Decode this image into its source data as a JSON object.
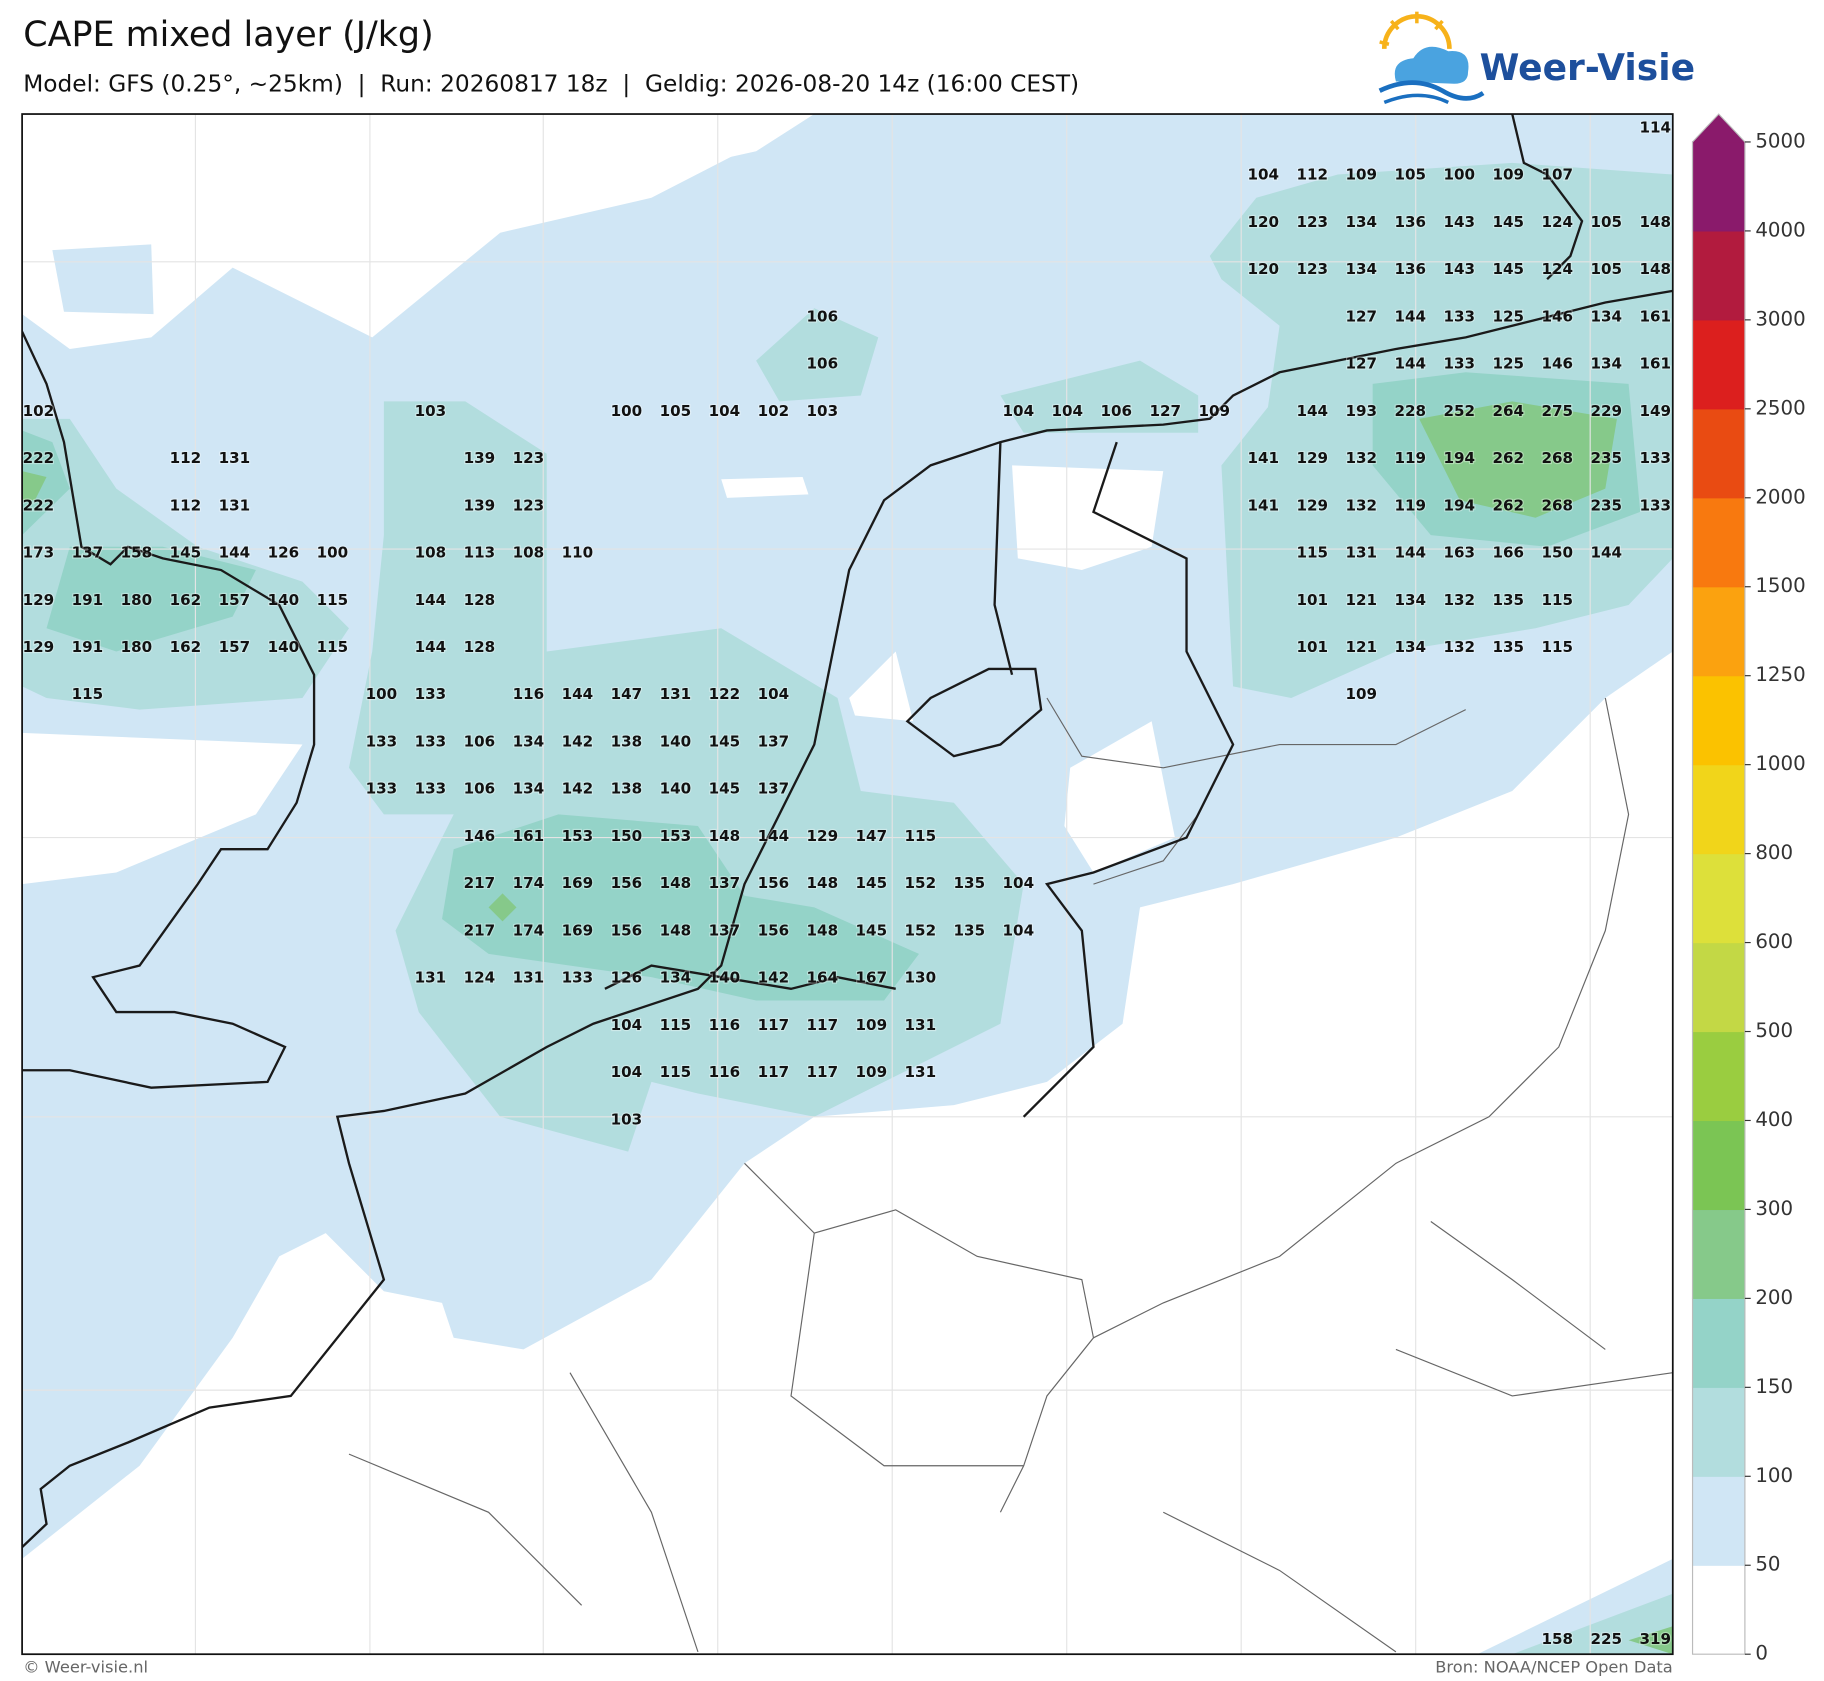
{
  "header": {
    "title": "CAPE mixed layer (J/kg)",
    "subtitle": "Model: GFS (0.25°, ~25km)  |  Run: 20260817 18z  |  Geldig: 2026-08-20 14z (16:00 CEST)",
    "logo": "Weer-Visie"
  },
  "map": {
    "values": [
      [
        null,
        null,
        null,
        null,
        null,
        null,
        null,
        null,
        null,
        null,
        null,
        null,
        null,
        null,
        null,
        null,
        null,
        null,
        null,
        null,
        null,
        null,
        null,
        null,
        null,
        null,
        null,
        null,
        null,
        null,
        null,
        null,
        null,
        114
      ],
      [
        null,
        null,
        null,
        null,
        null,
        null,
        null,
        null,
        null,
        null,
        null,
        null,
        null,
        null,
        null,
        null,
        null,
        null,
        null,
        null,
        null,
        null,
        null,
        null,
        null,
        104,
        112,
        109,
        105,
        100,
        109,
        107,
        null,
        null
      ],
      [
        null,
        null,
        null,
        null,
        null,
        null,
        null,
        null,
        null,
        null,
        null,
        null,
        null,
        null,
        null,
        null,
        null,
        null,
        null,
        null,
        null,
        null,
        null,
        null,
        null,
        120,
        123,
        134,
        136,
        143,
        145,
        124,
        105,
        148
      ],
      [
        null,
        null,
        null,
        null,
        null,
        null,
        null,
        null,
        null,
        null,
        null,
        null,
        null,
        null,
        null,
        null,
        null,
        null,
        null,
        null,
        null,
        null,
        null,
        null,
        null,
        120,
        123,
        134,
        136,
        143,
        145,
        124,
        105,
        148
      ],
      [
        null,
        null,
        null,
        null,
        null,
        null,
        null,
        null,
        null,
        null,
        null,
        null,
        null,
        null,
        null,
        null,
        106,
        null,
        null,
        null,
        null,
        null,
        null,
        null,
        null,
        null,
        null,
        127,
        144,
        133,
        125,
        146,
        134,
        161
      ],
      [
        null,
        null,
        null,
        null,
        null,
        null,
        null,
        null,
        null,
        null,
        null,
        null,
        null,
        null,
        null,
        null,
        106,
        null,
        null,
        null,
        null,
        null,
        null,
        null,
        null,
        null,
        null,
        127,
        144,
        133,
        125,
        146,
        134,
        161
      ],
      [
        102,
        null,
        null,
        null,
        null,
        null,
        null,
        null,
        103,
        null,
        null,
        null,
        100,
        105,
        104,
        102,
        103,
        null,
        null,
        null,
        104,
        104,
        106,
        127,
        109,
        null,
        144,
        193,
        228,
        252,
        264,
        275,
        229,
        149
      ],
      [
        222,
        null,
        null,
        112,
        131,
        null,
        null,
        null,
        null,
        139,
        123,
        null,
        null,
        null,
        null,
        null,
        null,
        null,
        null,
        null,
        null,
        null,
        null,
        null,
        null,
        141,
        129,
        132,
        119,
        194,
        262,
        268,
        235,
        133
      ],
      [
        222,
        null,
        null,
        112,
        131,
        null,
        null,
        null,
        null,
        139,
        123,
        null,
        null,
        null,
        null,
        null,
        null,
        null,
        null,
        null,
        null,
        null,
        null,
        null,
        null,
        141,
        129,
        132,
        119,
        194,
        262,
        268,
        235,
        133
      ],
      [
        173,
        137,
        158,
        145,
        144,
        126,
        100,
        null,
        108,
        113,
        108,
        110,
        null,
        null,
        null,
        null,
        null,
        null,
        null,
        null,
        null,
        null,
        null,
        null,
        null,
        null,
        115,
        131,
        144,
        163,
        166,
        150,
        144,
        null
      ],
      [
        129,
        191,
        180,
        162,
        157,
        140,
        115,
        null,
        144,
        128,
        null,
        null,
        null,
        null,
        null,
        null,
        null,
        null,
        null,
        null,
        null,
        null,
        null,
        null,
        null,
        null,
        101,
        121,
        134,
        132,
        135,
        115,
        null,
        null
      ],
      [
        129,
        191,
        180,
        162,
        157,
        140,
        115,
        null,
        144,
        128,
        null,
        null,
        null,
        null,
        null,
        null,
        null,
        null,
        null,
        null,
        null,
        null,
        null,
        null,
        null,
        null,
        101,
        121,
        134,
        132,
        135,
        115,
        null,
        null
      ],
      [
        null,
        115,
        null,
        null,
        null,
        null,
        null,
        100,
        133,
        null,
        116,
        144,
        147,
        131,
        122,
        104,
        null,
        null,
        null,
        null,
        null,
        null,
        null,
        null,
        null,
        null,
        null,
        109,
        null,
        null,
        null,
        null,
        null,
        null
      ],
      [
        null,
        null,
        null,
        null,
        null,
        null,
        null,
        133,
        133,
        106,
        134,
        142,
        138,
        140,
        145,
        137,
        null,
        null,
        null,
        null,
        null,
        null,
        null,
        null,
        null,
        null,
        null,
        null,
        null,
        null,
        null,
        null,
        null,
        null
      ],
      [
        null,
        null,
        null,
        null,
        null,
        null,
        null,
        133,
        133,
        106,
        134,
        142,
        138,
        140,
        145,
        137,
        null,
        null,
        null,
        null,
        null,
        null,
        null,
        null,
        null,
        null,
        null,
        null,
        null,
        null,
        null,
        null,
        null,
        null
      ],
      [
        null,
        null,
        null,
        null,
        null,
        null,
        null,
        null,
        null,
        146,
        161,
        153,
        150,
        153,
        148,
        144,
        129,
        147,
        115,
        null,
        null,
        null,
        null,
        null,
        null,
        null,
        null,
        null,
        null,
        null,
        null,
        null,
        null,
        null
      ],
      [
        null,
        null,
        null,
        null,
        null,
        null,
        null,
        null,
        null,
        217,
        174,
        169,
        156,
        148,
        137,
        156,
        148,
        145,
        152,
        135,
        104,
        null,
        null,
        null,
        null,
        null,
        null,
        null,
        null,
        null,
        null,
        null,
        null,
        null
      ],
      [
        null,
        null,
        null,
        null,
        null,
        null,
        null,
        null,
        null,
        217,
        174,
        169,
        156,
        148,
        137,
        156,
        148,
        145,
        152,
        135,
        104,
        null,
        null,
        null,
        null,
        null,
        null,
        null,
        null,
        null,
        null,
        null,
        null,
        null
      ],
      [
        null,
        null,
        null,
        null,
        null,
        null,
        null,
        null,
        131,
        124,
        131,
        133,
        126,
        134,
        140,
        142,
        164,
        167,
        130,
        null,
        null,
        null,
        null,
        null,
        null,
        null,
        null,
        null,
        null,
        null,
        null,
        null,
        null,
        null
      ],
      [
        null,
        null,
        null,
        null,
        null,
        null,
        null,
        null,
        null,
        null,
        null,
        null,
        104,
        115,
        116,
        117,
        117,
        109,
        131,
        null,
        null,
        null,
        null,
        null,
        null,
        null,
        null,
        null,
        null,
        null,
        null,
        null,
        null,
        null
      ],
      [
        null,
        null,
        null,
        null,
        null,
        null,
        null,
        null,
        null,
        null,
        null,
        null,
        104,
        115,
        116,
        117,
        117,
        109,
        131,
        null,
        null,
        null,
        null,
        null,
        null,
        null,
        null,
        null,
        null,
        null,
        null,
        null,
        null,
        null
      ],
      [
        null,
        null,
        null,
        null,
        null,
        null,
        null,
        null,
        null,
        null,
        null,
        null,
        103,
        null,
        null,
        null,
        null,
        null,
        null,
        null,
        null,
        null,
        null,
        null,
        null,
        null,
        null,
        null,
        null,
        null,
        null,
        null,
        null,
        null
      ],
      [],
      [],
      [],
      [],
      [],
      [],
      [],
      [],
      [],
      [],
      [
        null,
        null,
        null,
        null,
        null,
        null,
        null,
        null,
        null,
        null,
        null,
        null,
        null,
        null,
        null,
        null,
        null,
        null,
        null,
        null,
        null,
        null,
        null,
        null,
        null,
        null,
        null,
        null,
        null,
        null,
        null,
        158,
        225,
        319
      ]
    ]
  },
  "colorbar": {
    "ticks": [
      0,
      50,
      100,
      150,
      200,
      300,
      400,
      500,
      600,
      800,
      1000,
      1250,
      1500,
      2000,
      2500,
      3000,
      4000,
      5000
    ],
    "colors": [
      "#ffffff",
      "#d0e6f5",
      "#b2ddde",
      "#94d3c8",
      "#86c98a",
      "#7bc554",
      "#9acd40",
      "#c3d845",
      "#dde03a",
      "#f1d51a",
      "#fbc200",
      "#fba20f",
      "#f8790f",
      "#e94b12",
      "#dc1f1e",
      "#b21b3e",
      "#8a1a6b"
    ]
  },
  "footer": {
    "copyright": "© Weer-visie.nl",
    "source": "Bron: NOAA/NCEP Open Data"
  }
}
